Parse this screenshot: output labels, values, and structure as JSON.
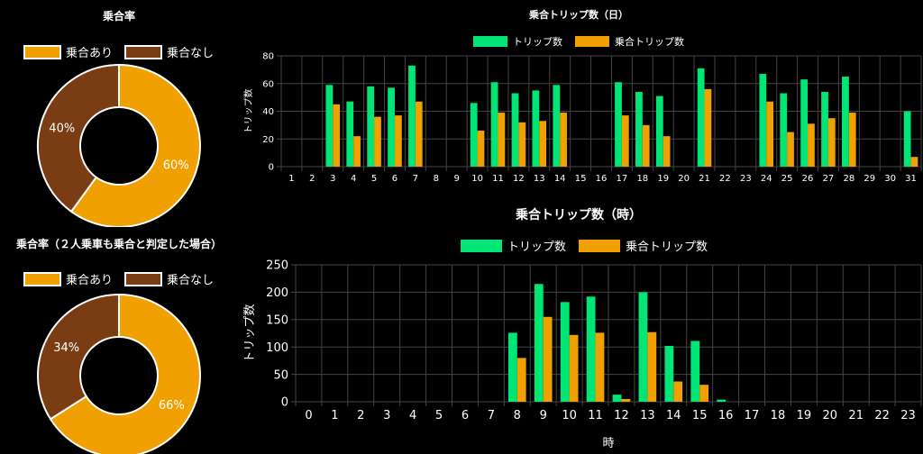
{
  "colors": {
    "green": "#00e676",
    "orange": "#f0a000",
    "brown": "#7a3c12",
    "grid": "#444444",
    "text": "#ffffff",
    "background": "#000000"
  },
  "chart_data": [
    {
      "type": "pie",
      "subtype": "doughnut",
      "title": "乗合率",
      "labels": [
        "乗合あり",
        "乗合なし"
      ],
      "values": [
        60,
        40
      ],
      "slice_labels": [
        "60%",
        "40%"
      ],
      "colors": [
        "#f0a000",
        "#7a3c12"
      ],
      "legend": "top"
    },
    {
      "type": "pie",
      "subtype": "doughnut",
      "title": "乗合率（２人乗車も乗合と判定した場合）",
      "labels": [
        "乗合あり",
        "乗合なし"
      ],
      "values": [
        66,
        34
      ],
      "slice_labels": [
        "66%",
        "34%"
      ],
      "colors": [
        "#f0a000",
        "#7a3c12"
      ],
      "legend": "top"
    },
    {
      "type": "bar",
      "title": "乗合トリップ数（日）",
      "xlabel": "",
      "ylabel": "トリップ数",
      "categories": [
        "1",
        "2",
        "3",
        "4",
        "5",
        "6",
        "7",
        "8",
        "9",
        "10",
        "11",
        "12",
        "13",
        "14",
        "15",
        "16",
        "17",
        "18",
        "19",
        "20",
        "21",
        "22",
        "23",
        "24",
        "25",
        "26",
        "27",
        "28",
        "29",
        "30",
        "31"
      ],
      "series": [
        {
          "name": "トリップ数",
          "color": "#00e676",
          "values": [
            0,
            0,
            59,
            47,
            58,
            57,
            73,
            0,
            0,
            46,
            61,
            53,
            55,
            59,
            0,
            0,
            61,
            54,
            51,
            0,
            71,
            0,
            0,
            67,
            53,
            63,
            54,
            65,
            0,
            0,
            40
          ]
        },
        {
          "name": "乗合トリップ数",
          "color": "#f0a000",
          "values": [
            0,
            0,
            45,
            22,
            36,
            37,
            47,
            0,
            0,
            26,
            39,
            32,
            33,
            39,
            0,
            0,
            37,
            30,
            22,
            0,
            56,
            0,
            0,
            47,
            25,
            31,
            35,
            39,
            0,
            0,
            7
          ]
        }
      ],
      "ylim": [
        0,
        80
      ],
      "yticks": [
        0,
        20,
        40,
        60,
        80
      ],
      "grid": true,
      "legend": "top"
    },
    {
      "type": "bar",
      "title": "乗合トリップ数（時）",
      "xlabel": "時",
      "ylabel": "トリップ数",
      "categories": [
        "0",
        "1",
        "2",
        "3",
        "4",
        "5",
        "6",
        "7",
        "8",
        "9",
        "10",
        "11",
        "12",
        "13",
        "14",
        "15",
        "16",
        "17",
        "18",
        "19",
        "20",
        "21",
        "22",
        "23"
      ],
      "series": [
        {
          "name": "トリップ数",
          "color": "#00e676",
          "values": [
            0,
            0,
            0,
            0,
            0,
            0,
            0,
            0,
            126,
            215,
            182,
            192,
            13,
            200,
            102,
            111,
            4,
            0,
            0,
            0,
            0,
            0,
            0,
            0
          ]
        },
        {
          "name": "乗合トリップ数",
          "color": "#f0a000",
          "values": [
            0,
            0,
            0,
            0,
            0,
            0,
            0,
            0,
            80,
            155,
            122,
            126,
            5,
            127,
            37,
            31,
            0,
            0,
            0,
            0,
            0,
            0,
            0,
            0
          ]
        }
      ],
      "ylim": [
        0,
        250
      ],
      "yticks": [
        0,
        50,
        100,
        150,
        200,
        250
      ],
      "grid": true,
      "legend": "top"
    }
  ]
}
